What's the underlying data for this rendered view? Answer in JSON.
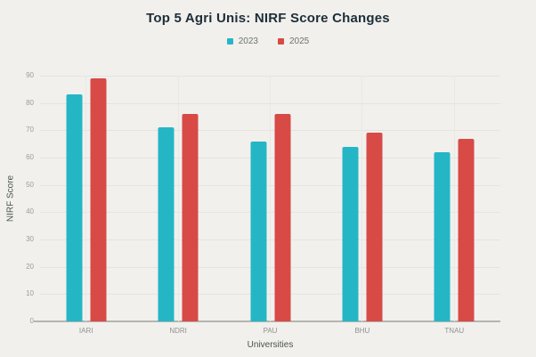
{
  "chart_data": {
    "type": "bar",
    "title": "Top 5 Agri Unis: NIRF Score Changes",
    "xlabel": "Universities",
    "ylabel": "NIRF Score",
    "categories": [
      "IARI",
      "NDRI",
      "PAU",
      "BHU",
      "TNAU"
    ],
    "series": [
      {
        "name": "2023",
        "color": "#25b6c6",
        "values": [
          83,
          71,
          66,
          64,
          62
        ]
      },
      {
        "name": "2025",
        "color": "#d84a46",
        "values": [
          89,
          76,
          76,
          69,
          67
        ]
      }
    ],
    "ylim": [
      0,
      90
    ],
    "yticks": [
      0,
      10,
      20,
      30,
      40,
      50,
      60,
      70,
      80,
      90
    ],
    "grid": true,
    "legend_position": "top-center"
  },
  "colors": {
    "background": "#f1f0ed",
    "title_text": "#1d2e38",
    "legend_text": "#6e7270",
    "tick_text": "#9a9d9b",
    "category_text": "#8f918f",
    "axis_title_text": "#4a5552",
    "gridline": "#e5e4e1",
    "axis_line": "#b4b4b1",
    "series_2023": "#25b6c6",
    "series_2025": "#d84a46"
  }
}
